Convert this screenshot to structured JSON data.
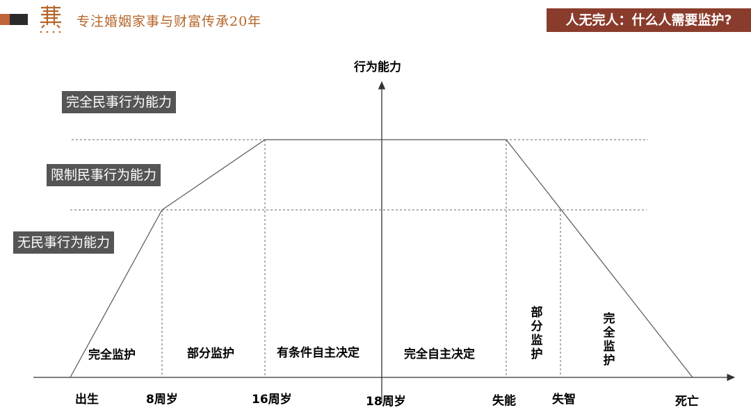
{
  "header": {
    "tagline": "专注婚姻家事与财富传承20年",
    "title": "人无完人：什么人需要监护?",
    "accent_color": "#c0623a",
    "title_bg_color": "#8a3c2c"
  },
  "logo": {
    "icon": "law-firm-logo-icon"
  },
  "diagram": {
    "y_axis_label": "行为能力",
    "capacity_levels": [
      "完全民事行为能力",
      "限制民事行为能力",
      "无民事行为能力"
    ],
    "stages": [
      "完全监护",
      "部分监护",
      "有条件自主决定",
      "完全自主决定",
      "部分监护",
      "完全监护"
    ],
    "milestones": [
      "出生",
      "8周岁",
      "16周岁",
      "18周岁",
      "失能",
      "失智",
      "死亡"
    ]
  }
}
